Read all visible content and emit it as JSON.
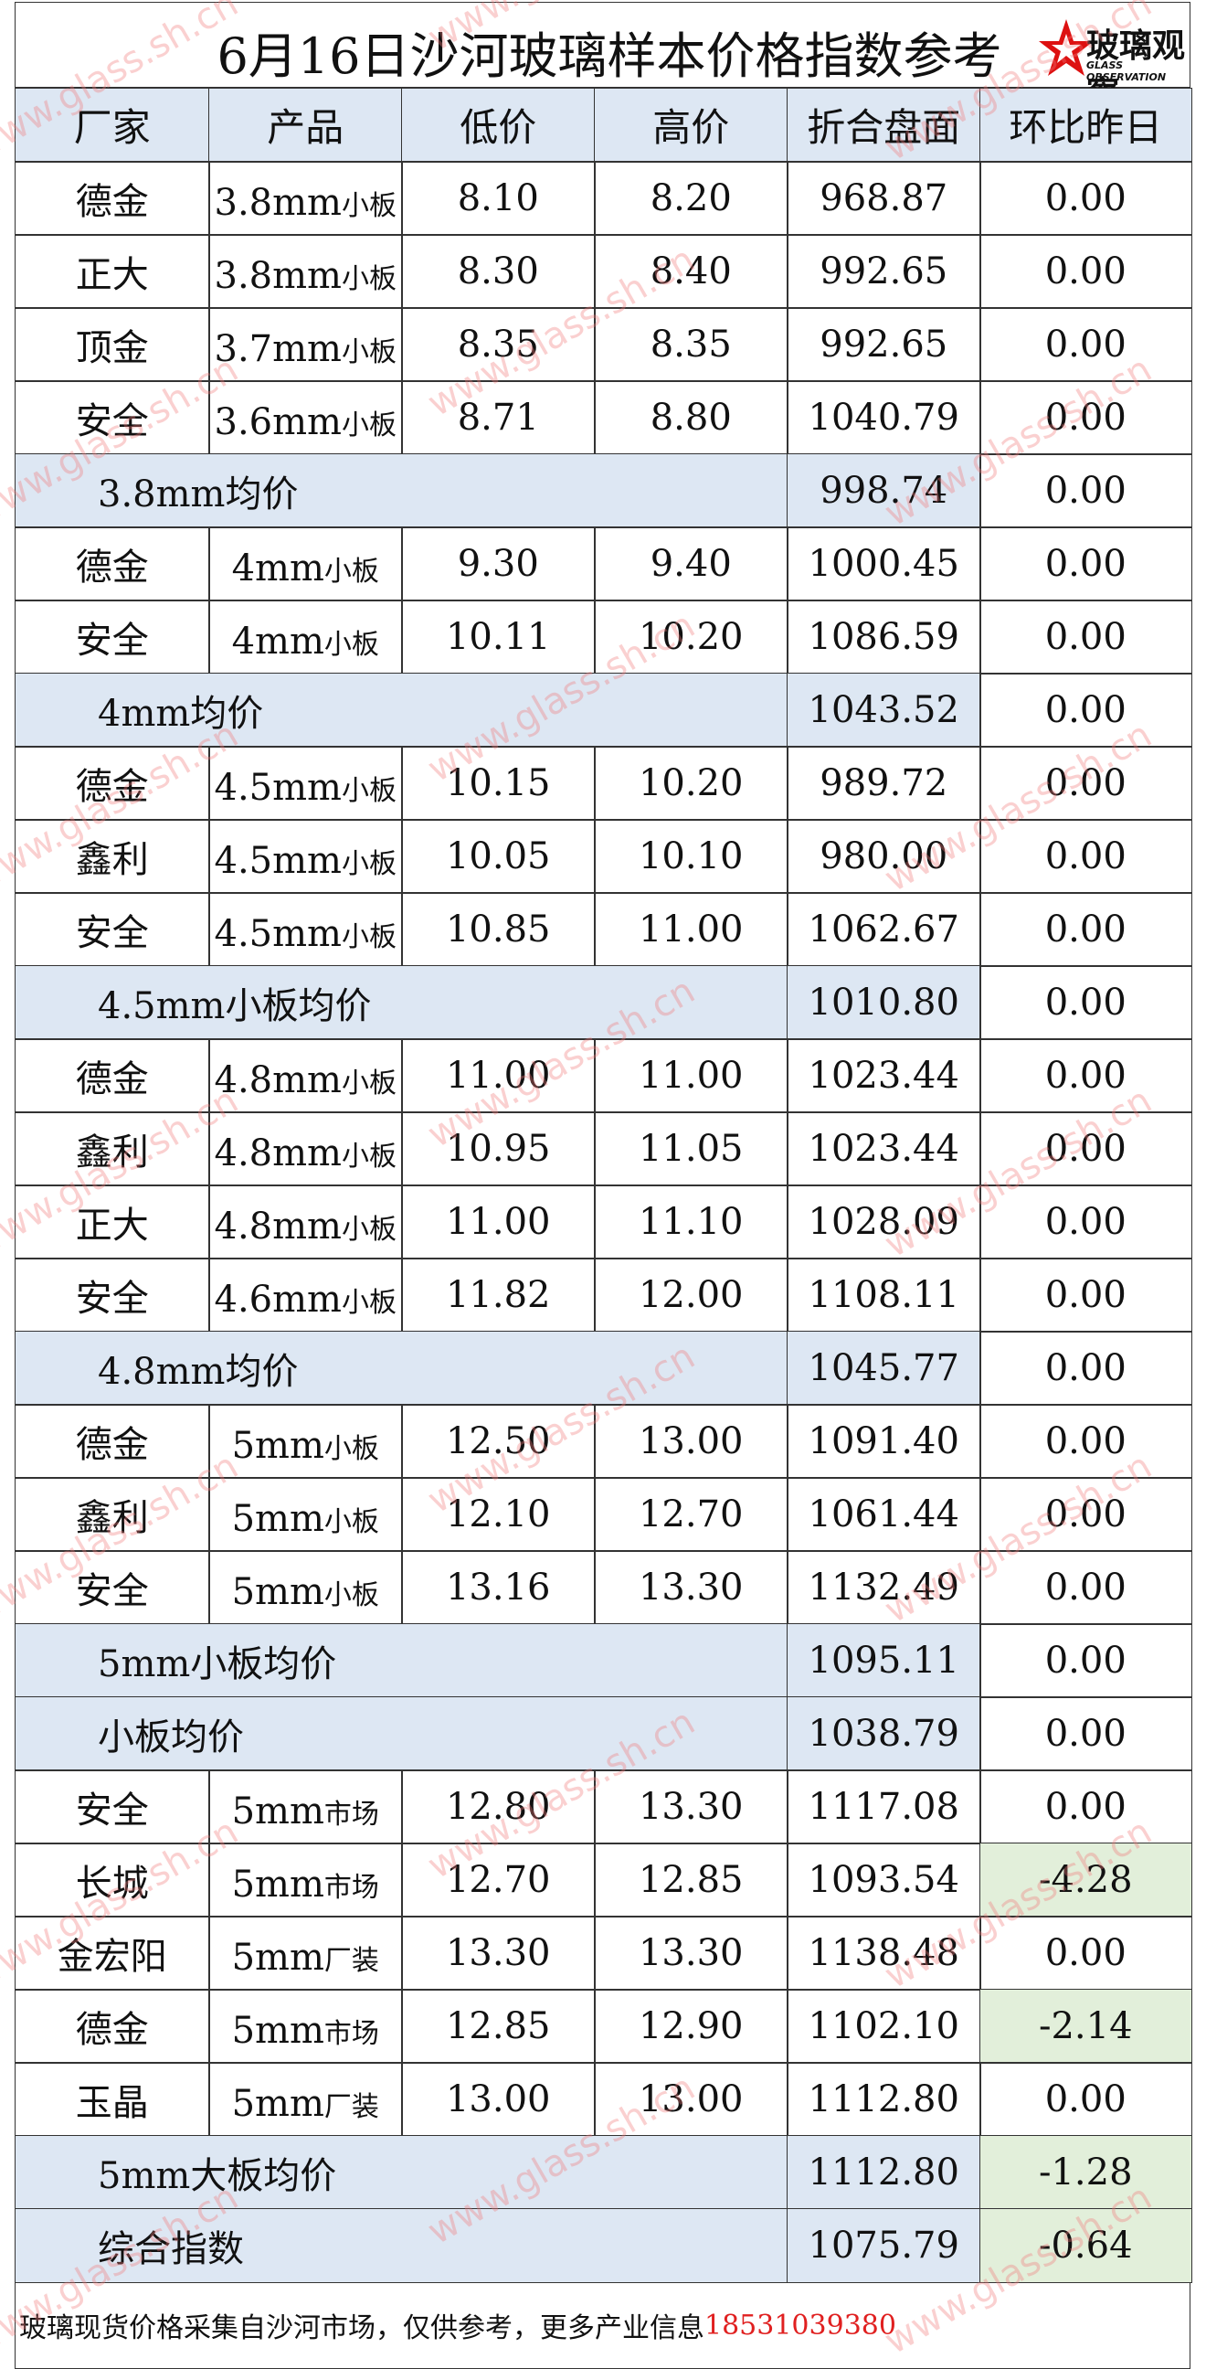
{
  "title": "6月16日沙河玻璃样本价格指数参考",
  "logo": {
    "name": "玻璃观察",
    "subtitle": "GLASS OBSERVATION"
  },
  "watermark": "www.glass.sh.cn",
  "table": {
    "header": [
      "厂家",
      "产品",
      "低价",
      "高价",
      "折合盘面",
      "环比昨日"
    ],
    "rows": [
      {
        "maker": "德金",
        "product": {
          "size": "3.8mm",
          "kind": "小板"
        },
        "low": "8.10",
        "high": "8.20",
        "index": "968.87",
        "change": "0.00"
      },
      {
        "maker": "正大",
        "product": {
          "size": "3.8mm",
          "kind": "小板"
        },
        "low": "8.30",
        "high": "8.40",
        "index": "992.65",
        "change": "0.00"
      },
      {
        "maker": "顶金",
        "product": {
          "size": "3.7mm",
          "kind": "小板"
        },
        "low": "8.35",
        "high": "8.35",
        "index": "992.65",
        "change": "0.00"
      },
      {
        "maker": "安全",
        "product": {
          "size": "3.6mm",
          "kind": "小板"
        },
        "low": "8.71",
        "high": "8.80",
        "index": "1040.79",
        "change": "0.00"
      },
      {
        "label": "3.8mm均价",
        "index": "998.74",
        "change": "0.00"
      },
      {
        "maker": "德金",
        "product": {
          "size": "4mm",
          "kind": "小板"
        },
        "low": "9.30",
        "high": "9.40",
        "index": "1000.45",
        "change": "0.00"
      },
      {
        "maker": "安全",
        "product": {
          "size": "4mm",
          "kind": "小板"
        },
        "low": "10.11",
        "high": "10.20",
        "index": "1086.59",
        "change": "0.00"
      },
      {
        "label": "4mm均价",
        "index": "1043.52",
        "change": "0.00"
      },
      {
        "maker": "德金",
        "product": {
          "size": "4.5mm",
          "kind": "小板"
        },
        "low": "10.15",
        "high": "10.20",
        "index": "989.72",
        "change": "0.00"
      },
      {
        "maker": "鑫利",
        "product": {
          "size": "4.5mm",
          "kind": "小板"
        },
        "low": "10.05",
        "high": "10.10",
        "index": "980.00",
        "change": "0.00"
      },
      {
        "maker": "安全",
        "product": {
          "size": "4.5mm",
          "kind": "小板"
        },
        "low": "10.85",
        "high": "11.00",
        "index": "1062.67",
        "change": "0.00"
      },
      {
        "label": "4.5mm小板均价",
        "index": "1010.80",
        "change": "0.00"
      },
      {
        "maker": "德金",
        "product": {
          "size": "4.8mm",
          "kind": "小板"
        },
        "low": "11.00",
        "high": "11.00",
        "index": "1023.44",
        "change": "0.00"
      },
      {
        "maker": "鑫利",
        "product": {
          "size": "4.8mm",
          "kind": "小板"
        },
        "low": "10.95",
        "high": "11.05",
        "index": "1023.44",
        "change": "0.00"
      },
      {
        "maker": "正大",
        "product": {
          "size": "4.8mm",
          "kind": "小板"
        },
        "low": "11.00",
        "high": "11.10",
        "index": "1028.09",
        "change": "0.00"
      },
      {
        "maker": "安全",
        "product": {
          "size": "4.6mm",
          "kind": "小板"
        },
        "low": "11.82",
        "high": "12.00",
        "index": "1108.11",
        "change": "0.00"
      },
      {
        "label": "4.8mm均价",
        "index": "1045.77",
        "change": "0.00"
      },
      {
        "maker": "德金",
        "product": {
          "size": "5mm",
          "kind": "小板"
        },
        "low": "12.50",
        "high": "13.00",
        "index": "1091.40",
        "change": "0.00"
      },
      {
        "maker": "鑫利",
        "product": {
          "size": "5mm",
          "kind": "小板"
        },
        "low": "12.10",
        "high": "12.70",
        "index": "1061.44",
        "change": "0.00"
      },
      {
        "maker": "安全",
        "product": {
          "size": "5mm",
          "kind": "小板"
        },
        "low": "13.16",
        "high": "13.30",
        "index": "1132.49",
        "change": "0.00"
      },
      {
        "label": "5mm小板均价",
        "index": "1095.11",
        "change": "0.00"
      },
      {
        "label": "小板均价",
        "index": "1038.79",
        "change": "0.00"
      },
      {
        "maker": "安全",
        "product": {
          "size": "5mm",
          "kind": "市场"
        },
        "low": "12.80",
        "high": "13.30",
        "index": "1117.08",
        "change": "0.00"
      },
      {
        "maker": "长城",
        "product": {
          "size": "5mm",
          "kind": "市场"
        },
        "low": "12.70",
        "high": "12.85",
        "index": "1093.54",
        "change": "-4.28"
      },
      {
        "maker": "金宏阳",
        "product": {
          "size": "5mm",
          "kind": "厂装"
        },
        "low": "13.30",
        "high": "13.30",
        "index": "1138.48",
        "change": "0.00"
      },
      {
        "maker": "德金",
        "product": {
          "size": "5mm",
          "kind": "市场"
        },
        "low": "12.85",
        "high": "12.90",
        "index": "1102.10",
        "change": "-2.14"
      },
      {
        "maker": "玉晶",
        "product": {
          "size": "5mm",
          "kind": "厂装"
        },
        "low": "13.00",
        "high": "13.00",
        "index": "1112.80",
        "change": "0.00"
      },
      {
        "label": "5mm大板均价",
        "index": "1112.80",
        "change": "-1.28"
      },
      {
        "label": "综合指数",
        "index": "1075.79",
        "change": "-0.64"
      }
    ]
  },
  "footer": {
    "note": "玻璃现货价格采集自沙河市场，仅供参考，更多产业信息",
    "phone": "18531039380"
  }
}
